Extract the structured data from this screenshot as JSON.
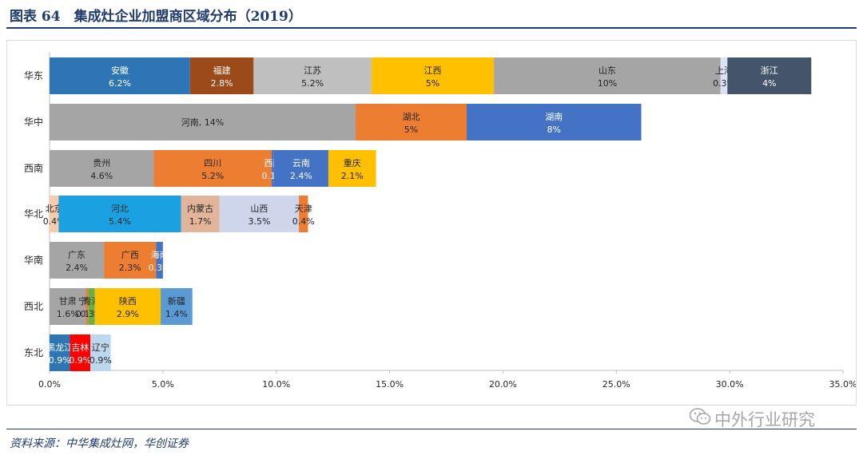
{
  "page": {
    "title": "图表 64　集成灶企业加盟商区域分布（2019）",
    "source": "资料来源：中华集成灶网，华创证券",
    "watermark": "中外行业研究",
    "watermark_icon": "wechat-icon"
  },
  "chart_data": {
    "type": "bar",
    "orientation": "horizontal",
    "stacked": true,
    "title": "",
    "xlabel": "",
    "ylabel": "",
    "xlim": [
      0,
      35
    ],
    "x_ticks": [
      "0.0%",
      "5.0%",
      "10.0%",
      "15.0%",
      "20.0%",
      "25.0%",
      "30.0%",
      "35.0%"
    ],
    "grid": false,
    "legend": "none",
    "categories": [
      "华东",
      "华中",
      "西南",
      "华北",
      "华南",
      "西北",
      "东北"
    ],
    "rows": [
      {
        "region": "华东",
        "segments": [
          {
            "name": "安徽",
            "label": "6.2%",
            "value": 6.2,
            "color": "#2e75b6"
          },
          {
            "name": "福建",
            "label": "2.8%",
            "value": 2.8,
            "color": "#9c4a1a"
          },
          {
            "name": "江苏",
            "label": "5.2%",
            "value": 5.2,
            "color": "#bfbfbf"
          },
          {
            "name": "江西",
            "label": "5%",
            "value": 5.4,
            "color": "#ffc000"
          },
          {
            "name": "山东",
            "label": "10%",
            "value": 10.0,
            "color": "#a5a5a5"
          },
          {
            "name": "上海",
            "label": "0.3%",
            "value": 0.3,
            "color": "#dae3f3"
          },
          {
            "name": "浙江",
            "label": "4%",
            "value": 3.7,
            "color": "#44546a"
          }
        ]
      },
      {
        "region": "华中",
        "segments": [
          {
            "name": "河南",
            "label": "河南, 14%",
            "value": 13.5,
            "color": "#a5a5a5"
          },
          {
            "name": "湖北",
            "label": "5%",
            "value": 4.9,
            "color": "#ed7d31"
          },
          {
            "name": "湖南",
            "label": "8%",
            "value": 7.7,
            "color": "#4472c4"
          }
        ]
      },
      {
        "region": "西南",
        "segments": [
          {
            "name": "贵州",
            "label": "4.6%",
            "value": 4.6,
            "color": "#a5a5a5"
          },
          {
            "name": "四川",
            "label": "5.2%",
            "value": 5.2,
            "color": "#ed7d31"
          },
          {
            "name": "西藏",
            "label": "0.1%",
            "value": 0.1,
            "color": "#4472c4"
          },
          {
            "name": "云南",
            "label": "2.4%",
            "value": 2.4,
            "color": "#4472c4"
          },
          {
            "name": "重庆",
            "label": "2.1%",
            "value": 2.1,
            "color": "#ffc000"
          }
        ]
      },
      {
        "region": "华北",
        "segments": [
          {
            "name": "北京",
            "label": "0.4%",
            "value": 0.4,
            "color": "#f8cbad"
          },
          {
            "name": "河北",
            "label": "5.4%",
            "value": 5.4,
            "color": "#1ba1e2"
          },
          {
            "name": "内蒙古",
            "label": "1.7%",
            "value": 1.7,
            "color": "#e2b49a"
          },
          {
            "name": "山西",
            "label": "3.5%",
            "value": 3.5,
            "color": "#cfd5ea"
          },
          {
            "name": "天津",
            "label": "0.4%",
            "value": 0.4,
            "color": "#ed7d31"
          }
        ]
      },
      {
        "region": "华南",
        "segments": [
          {
            "name": "广东",
            "label": "2.4%",
            "value": 2.4,
            "color": "#a5a5a5"
          },
          {
            "name": "广西",
            "label": "2.3%",
            "value": 2.3,
            "color": "#ed7d31"
          },
          {
            "name": "海南",
            "label": "0.3%",
            "value": 0.3,
            "color": "#4472c4"
          }
        ]
      },
      {
        "region": "西北",
        "segments": [
          {
            "name": "甘肃",
            "label": "1.6%",
            "value": 1.6,
            "color": "#a5a5a5"
          },
          {
            "name": "宁夏",
            "label": "0.1%",
            "value": 0.1,
            "color": "#ed7d31"
          },
          {
            "name": "青海",
            "label": "0.3%",
            "value": 0.3,
            "color": "#70ad47"
          },
          {
            "name": "陕西",
            "label": "2.9%",
            "value": 2.9,
            "color": "#ffc000"
          },
          {
            "name": "新疆",
            "label": "1.4%",
            "value": 1.4,
            "color": "#5b9bd5"
          }
        ]
      },
      {
        "region": "东北",
        "segments": [
          {
            "name": "黑龙江",
            "label": "0.9%",
            "value": 0.9,
            "color": "#2e75b6"
          },
          {
            "name": "吉林",
            "label": "0.9%",
            "value": 0.9,
            "color": "#ff0000"
          },
          {
            "name": "辽宁",
            "label": "0.9%",
            "value": 0.9,
            "color": "#bdd7ee"
          }
        ]
      }
    ]
  }
}
